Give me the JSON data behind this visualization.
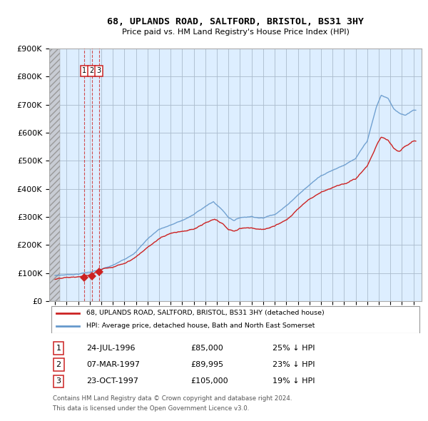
{
  "title": "68, UPLANDS ROAD, SALTFORD, BRISTOL, BS31 3HY",
  "subtitle": "Price paid vs. HM Land Registry's House Price Index (HPI)",
  "ylim": [
    0,
    900000
  ],
  "yticks": [
    0,
    100000,
    200000,
    300000,
    400000,
    500000,
    600000,
    700000,
    800000,
    900000
  ],
  "ytick_labels": [
    "£0",
    "£100K",
    "£200K",
    "£300K",
    "£400K",
    "£500K",
    "£600K",
    "£700K",
    "£800K",
    "£900K"
  ],
  "xlim_start": 1993.5,
  "xlim_end": 2025.7,
  "sale_dates": [
    1996.55,
    1997.18,
    1997.81
  ],
  "sale_prices": [
    85000,
    89995,
    105000
  ],
  "sale_labels": [
    "1",
    "2",
    "3"
  ],
  "sale_date_strs": [
    "24-JUL-1996",
    "07-MAR-1997",
    "23-OCT-1997"
  ],
  "sale_price_strs": [
    "£85,000",
    "£89,995",
    "£105,000"
  ],
  "sale_hpi_strs": [
    "25% ↓ HPI",
    "23% ↓ HPI",
    "19% ↓ HPI"
  ],
  "legend_line1": "68, UPLANDS ROAD, SALTFORD, BRISTOL, BS31 3HY (detached house)",
  "legend_line2": "HPI: Average price, detached house, Bath and North East Somerset",
  "footer1": "Contains HM Land Registry data © Crown copyright and database right 2024.",
  "footer2": "This data is licensed under the Open Government Licence v3.0.",
  "red_color": "#cc2222",
  "blue_color": "#6699cc",
  "chart_bg": "#ddeeff",
  "hatch_bg": "#c8ccd0",
  "background_color": "#ffffff",
  "grid_color": "#aabbcc"
}
